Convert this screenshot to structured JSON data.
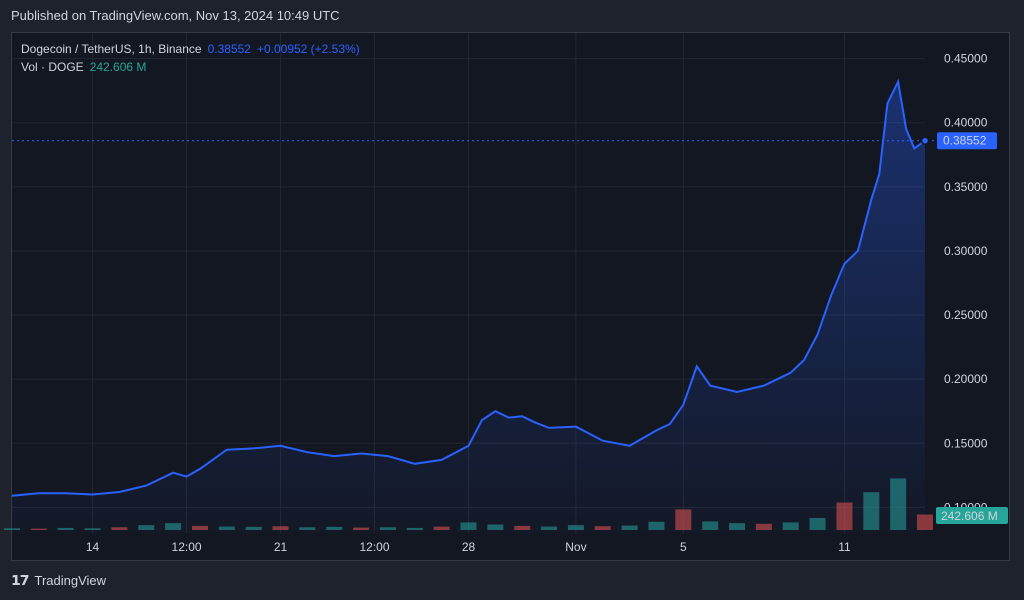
{
  "header": {
    "published": "Published on TradingView.com, Nov 13, 2024 10:49 UTC"
  },
  "legend": {
    "symbol": "Dogecoin / TetherUS, 1h, Binance",
    "last_price": "0.38552",
    "change": "+0.00952 (+2.53%)",
    "volume_label": "Vol · DOGE",
    "volume_value": "242.606 M"
  },
  "price_tag": "0.38552",
  "volume_tag": "242.606 M",
  "footer": {
    "logo": "𝟭𝟳",
    "brand": "TradingView"
  },
  "colors": {
    "line": "#2962ff",
    "up": "#26a69a",
    "down": "#ef5350",
    "grid": "#232733"
  },
  "chart_data": {
    "type": "area",
    "y_axis": {
      "ticks": [
        "0.45000",
        "0.40000",
        "0.35000",
        "0.30000",
        "0.25000",
        "0.20000",
        "0.15000",
        "0.10000"
      ],
      "tick_values": [
        0.45,
        0.4,
        0.35,
        0.3,
        0.25,
        0.2,
        0.15,
        0.1
      ],
      "range": [
        0.08,
        0.47
      ]
    },
    "x_axis": {
      "ticks": [
        "14",
        "12:00",
        "21",
        "12:00",
        "28",
        "Nov",
        "5",
        "11"
      ],
      "tick_days": [
        3.0,
        6.5,
        10.0,
        13.5,
        17.0,
        21.0,
        25.0,
        31.0
      ],
      "range_days": [
        0,
        34
      ]
    },
    "series": [
      {
        "x_days": [
          0,
          1.0,
          2.0,
          3.0,
          4.0,
          5.0,
          6.0,
          6.5,
          7.0,
          8.0,
          9.0,
          10.0,
          11.0,
          12.0,
          13.0,
          14.0,
          15.0,
          16.0,
          17.0,
          17.5,
          18.0,
          18.5,
          19.0,
          19.5,
          20.0,
          21.0,
          22.0,
          23.0,
          24.0,
          24.5,
          25.0,
          25.5,
          26.0,
          27.0,
          28.0,
          28.5,
          29.0,
          29.5,
          30.0,
          30.5,
          31.0,
          31.5,
          32.0,
          32.3,
          32.6,
          33.0,
          33.3,
          33.6,
          34.0
        ],
        "values": [
          0.109,
          0.111,
          0.111,
          0.11,
          0.112,
          0.117,
          0.127,
          0.124,
          0.13,
          0.145,
          0.146,
          0.148,
          0.143,
          0.14,
          0.142,
          0.14,
          0.134,
          0.137,
          0.148,
          0.168,
          0.175,
          0.17,
          0.171,
          0.166,
          0.162,
          0.163,
          0.152,
          0.148,
          0.16,
          0.165,
          0.18,
          0.21,
          0.195,
          0.19,
          0.195,
          0.2,
          0.205,
          0.215,
          0.235,
          0.265,
          0.29,
          0.3,
          0.34,
          0.36,
          0.415,
          0.432,
          0.395,
          0.38,
          0.386
        ]
      }
    ],
    "volume": {
      "label": "Vol · DOGE",
      "last": "242.606 M",
      "x_days": [
        0,
        1,
        2,
        3,
        4,
        5,
        6,
        7,
        8,
        9,
        10,
        11,
        12,
        13,
        14,
        15,
        16,
        17,
        18,
        19,
        20,
        21,
        22,
        23,
        24,
        25,
        26,
        27,
        28,
        29,
        30,
        31,
        32,
        33,
        34
      ],
      "values": [
        5,
        4,
        6,
        5,
        8,
        14,
        20,
        12,
        10,
        9,
        11,
        8,
        9,
        7,
        8,
        6,
        10,
        22,
        16,
        12,
        10,
        14,
        11,
        13,
        24,
        60,
        25,
        20,
        18,
        22,
        35,
        80,
        110,
        150,
        45
      ],
      "max": 160
    }
  }
}
